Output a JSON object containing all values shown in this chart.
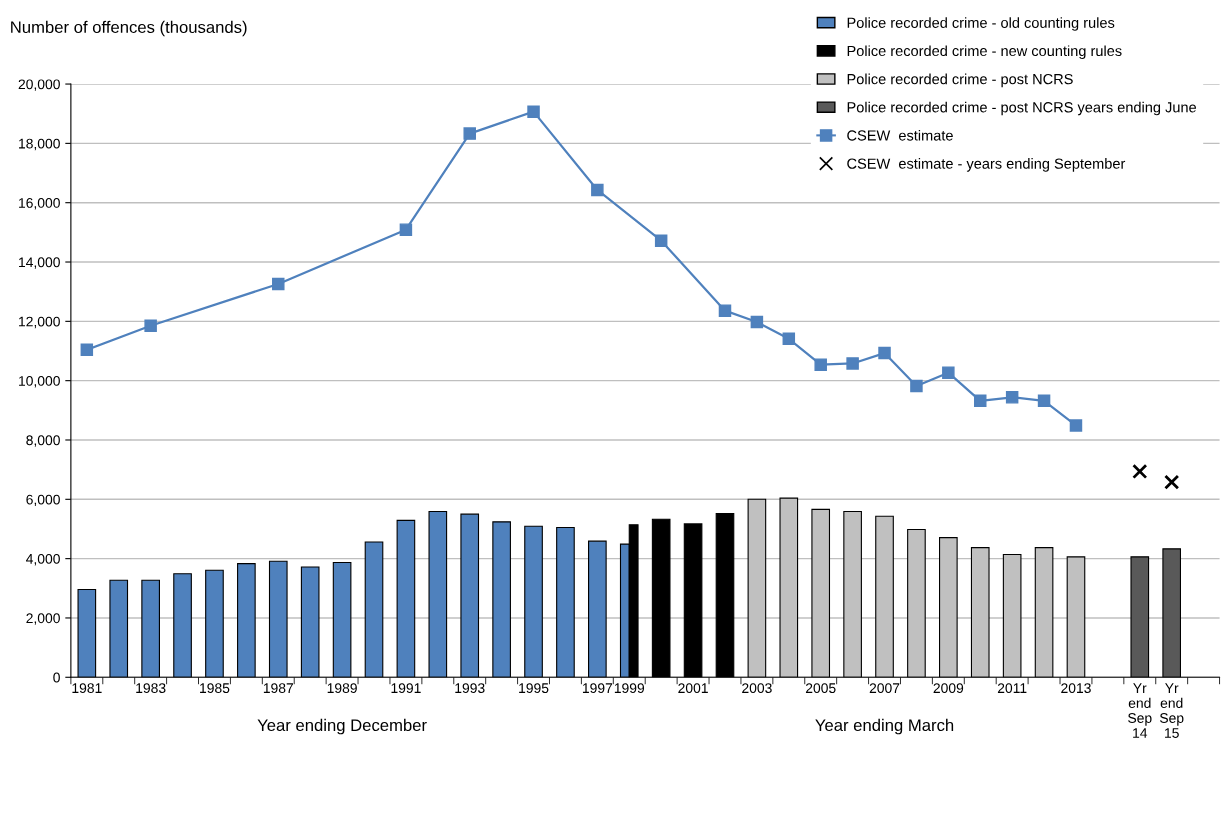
{
  "chart_data": {
    "type": "bar",
    "ylabel": "Number of offences (thousands)",
    "xlabel": "Year ending December",
    "annotations": [
      "Year ending March"
    ],
    "categories": [
      "1981",
      null,
      "1983",
      null,
      "1985",
      null,
      "1987",
      null,
      "1989",
      null,
      "1991",
      null,
      "1993",
      null,
      "1995",
      null,
      "1997",
      "1999",
      null,
      "2001",
      null,
      "2003",
      null,
      "2005",
      null,
      "2007",
      null,
      "2009",
      null,
      "2011",
      null,
      "2013",
      null,
      "Yr end Sep 14",
      "Yr end Sep 15",
      null
    ],
    "series": [
      {
        "name": "Police recorded crime - old counting rules",
        "color": "#4f81bd",
        "values": [
          2960,
          3270,
          3270,
          3490,
          3610,
          3830,
          3910,
          3720,
          3870,
          4560,
          5290,
          5590,
          5500,
          5240,
          5090,
          5050,
          4590,
          4490,
          null,
          null,
          null,
          null,
          null,
          null,
          null,
          null,
          null,
          null,
          null,
          null,
          null,
          null,
          null,
          null,
          null,
          null
        ]
      },
      {
        "name": "Police recorded crime - new counting rules",
        "color": "#000000",
        "values": [
          null,
          null,
          null,
          null,
          null,
          null,
          null,
          null,
          null,
          null,
          null,
          null,
          null,
          null,
          null,
          null,
          null,
          5140,
          5330,
          5170,
          5520,
          null,
          null,
          null,
          null,
          null,
          null,
          null,
          null,
          null,
          null,
          null,
          null,
          null,
          null,
          null
        ]
      },
      {
        "name": "Police recorded crime - post NCRS",
        "color": "#c0c0c0",
        "values": [
          null,
          null,
          null,
          null,
          null,
          null,
          null,
          null,
          null,
          null,
          null,
          null,
          null,
          null,
          null,
          null,
          null,
          null,
          null,
          null,
          null,
          6000,
          6040,
          5660,
          5590,
          5430,
          4980,
          4710,
          4370,
          4140,
          4370,
          4060,
          null,
          null,
          null,
          null
        ]
      },
      {
        "name": "Police recorded crime - post NCRS years ending June",
        "color": "#595959",
        "values": [
          null,
          null,
          null,
          null,
          null,
          null,
          null,
          null,
          null,
          null,
          null,
          null,
          null,
          null,
          null,
          null,
          null,
          null,
          null,
          null,
          null,
          null,
          null,
          null,
          null,
          null,
          null,
          null,
          null,
          null,
          null,
          null,
          null,
          4060,
          4330,
          null
        ]
      },
      {
        "name": "CSEW  estimate",
        "type": "line",
        "color": "#4f81bd",
        "marker": "square",
        "values": [
          11040,
          null,
          11850,
          null,
          null,
          null,
          13260,
          null,
          null,
          null,
          15090,
          null,
          18330,
          null,
          19070,
          null,
          16430,
          null,
          14720,
          null,
          12360,
          11980,
          11410,
          10540,
          10580,
          10930,
          9820,
          10270,
          9320,
          9440,
          9320,
          8490,
          null,
          null,
          null,
          null
        ]
      },
      {
        "name": "CSEW  estimate - years ending September",
        "type": "scatter",
        "color": "#000000",
        "marker": "cross",
        "values": [
          null,
          null,
          null,
          null,
          null,
          null,
          null,
          null,
          null,
          null,
          null,
          null,
          null,
          null,
          null,
          null,
          null,
          null,
          null,
          null,
          null,
          null,
          null,
          null,
          null,
          null,
          null,
          null,
          null,
          null,
          null,
          null,
          null,
          6940,
          6580,
          null
        ]
      }
    ],
    "ylim": [
      0,
      20000
    ],
    "yticks": [
      {
        "value": 0,
        "label": "0"
      },
      {
        "value": 2000,
        "label": "2,000"
      },
      {
        "value": 4000,
        "label": "4,000"
      },
      {
        "value": 6000,
        "label": "6,000"
      },
      {
        "value": 8000,
        "label": "8,000"
      },
      {
        "value": 10000,
        "label": "10,000"
      },
      {
        "value": 12000,
        "label": "12,000"
      },
      {
        "value": 14000,
        "label": "14,000"
      },
      {
        "value": 16000,
        "label": "16,000"
      },
      {
        "value": 18000,
        "label": "18,000"
      },
      {
        "value": 20000,
        "label": "20,000"
      }
    ],
    "grid": "y",
    "legend": "top right"
  }
}
